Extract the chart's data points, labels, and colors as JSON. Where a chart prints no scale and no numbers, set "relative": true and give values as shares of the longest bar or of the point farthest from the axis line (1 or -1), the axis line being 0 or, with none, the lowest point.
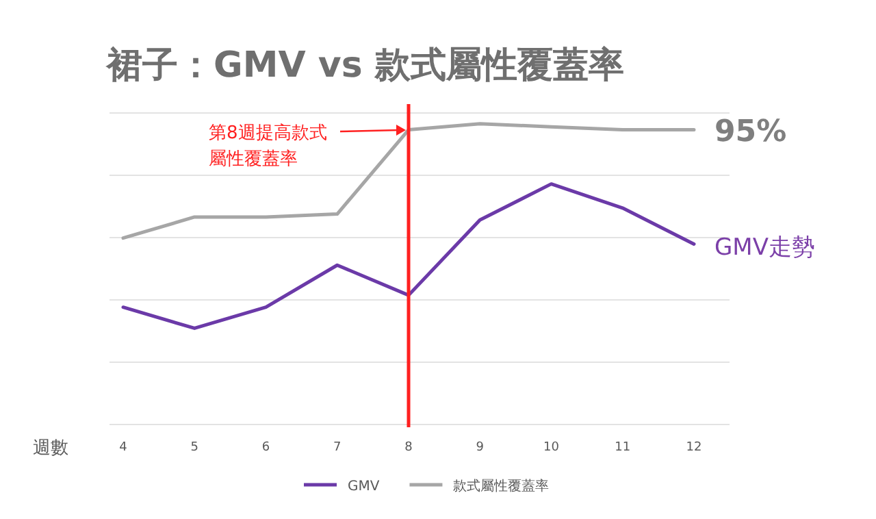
{
  "chart_data": {
    "type": "line",
    "title": "裙子：GMV vs 款式屬性覆蓋率",
    "xlabel": "週數",
    "categories": [
      "4",
      "5",
      "6",
      "7",
      "8",
      "9",
      "10",
      "11",
      "12"
    ],
    "relative": true,
    "grid": "y",
    "legend": "bottom",
    "series": [
      {
        "name": "GMV",
        "color": "#6b3aa8",
        "values": [
          0.39,
          0.32,
          0.39,
          0.53,
          0.43,
          0.68,
          0.8,
          0.72,
          0.6
        ]
      },
      {
        "name": "款式屬性覆蓋率",
        "color": "#a6a6a6",
        "values": [
          0.62,
          0.69,
          0.69,
          0.7,
          0.98,
          1,
          0.99,
          0.98,
          0.98
        ]
      }
    ],
    "ref_lines": [
      {
        "axis": "x",
        "value": "8",
        "label": "第8週提高款式屬性覆蓋率",
        "color": "#ff2020"
      }
    ],
    "annotations": [
      {
        "text": "95%",
        "x": "12",
        "y": 0.98
      },
      {
        "text": "GMV走勢",
        "x": "12",
        "y": 0.6
      }
    ]
  }
}
